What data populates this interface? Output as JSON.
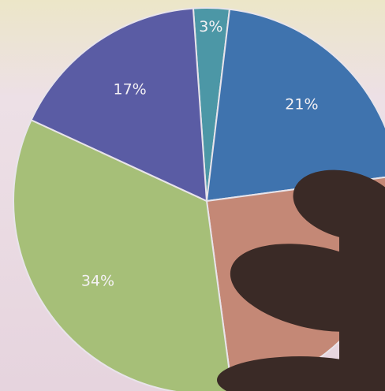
{
  "chart_data": {
    "type": "pie",
    "values": [
      3,
      21,
      25,
      34,
      17
    ],
    "value_labels": [
      "3%",
      "21%",
      null,
      "34%",
      "17%"
    ],
    "colors": [
      "#4c97a6",
      "#3f73ae",
      "#c48876",
      "#a6bf78",
      "#5a5ca4"
    ]
  }
}
